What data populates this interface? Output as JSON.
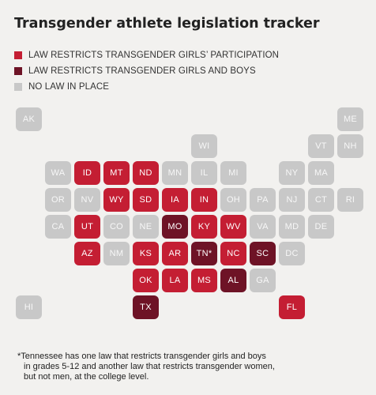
{
  "title": "Transgender athlete legislation tracker",
  "legend": [
    {
      "key": "girls",
      "label": "LAW RESTRICTS TRANSGENDER GIRLS’ PARTICIPATION",
      "color": "#c41e33"
    },
    {
      "key": "both",
      "label": "LAW RESTRICTS TRANSGENDER GIRLS AND BOYS",
      "color": "#6e1326"
    },
    {
      "key": "none",
      "label": "NO LAW IN PLACE",
      "color": "#c8c8c8"
    }
  ],
  "states": [
    {
      "label": "AK",
      "status": "none",
      "col": 0,
      "row": 0
    },
    {
      "label": "ME",
      "status": "none",
      "col": 11,
      "row": 0
    },
    {
      "label": "WI",
      "status": "none",
      "col": 6,
      "row": 1
    },
    {
      "label": "VT",
      "status": "none",
      "col": 10,
      "row": 1
    },
    {
      "label": "NH",
      "status": "none",
      "col": 11,
      "row": 1
    },
    {
      "label": "WA",
      "status": "none",
      "col": 1,
      "row": 2
    },
    {
      "label": "ID",
      "status": "girls",
      "col": 2,
      "row": 2
    },
    {
      "label": "MT",
      "status": "girls",
      "col": 3,
      "row": 2
    },
    {
      "label": "ND",
      "status": "girls",
      "col": 4,
      "row": 2
    },
    {
      "label": "MN",
      "status": "none",
      "col": 5,
      "row": 2
    },
    {
      "label": "IL",
      "status": "none",
      "col": 6,
      "row": 2
    },
    {
      "label": "MI",
      "status": "none",
      "col": 7,
      "row": 2
    },
    {
      "label": "NY",
      "status": "none",
      "col": 9,
      "row": 2
    },
    {
      "label": "MA",
      "status": "none",
      "col": 10,
      "row": 2
    },
    {
      "label": "OR",
      "status": "none",
      "col": 1,
      "row": 3
    },
    {
      "label": "NV",
      "status": "none",
      "col": 2,
      "row": 3
    },
    {
      "label": "WY",
      "status": "girls",
      "col": 3,
      "row": 3
    },
    {
      "label": "SD",
      "status": "girls",
      "col": 4,
      "row": 3
    },
    {
      "label": "IA",
      "status": "girls",
      "col": 5,
      "row": 3
    },
    {
      "label": "IN",
      "status": "girls",
      "col": 6,
      "row": 3
    },
    {
      "label": "OH",
      "status": "none",
      "col": 7,
      "row": 3
    },
    {
      "label": "PA",
      "status": "none",
      "col": 8,
      "row": 3
    },
    {
      "label": "NJ",
      "status": "none",
      "col": 9,
      "row": 3
    },
    {
      "label": "CT",
      "status": "none",
      "col": 10,
      "row": 3
    },
    {
      "label": "RI",
      "status": "none",
      "col": 11,
      "row": 3
    },
    {
      "label": "CA",
      "status": "none",
      "col": 1,
      "row": 4
    },
    {
      "label": "UT",
      "status": "girls",
      "col": 2,
      "row": 4
    },
    {
      "label": "CO",
      "status": "none",
      "col": 3,
      "row": 4
    },
    {
      "label": "NE",
      "status": "none",
      "col": 4,
      "row": 4
    },
    {
      "label": "MO",
      "status": "both",
      "col": 5,
      "row": 4
    },
    {
      "label": "KY",
      "status": "girls",
      "col": 6,
      "row": 4
    },
    {
      "label": "WV",
      "status": "girls",
      "col": 7,
      "row": 4
    },
    {
      "label": "VA",
      "status": "none",
      "col": 8,
      "row": 4
    },
    {
      "label": "MD",
      "status": "none",
      "col": 9,
      "row": 4
    },
    {
      "label": "DE",
      "status": "none",
      "col": 10,
      "row": 4
    },
    {
      "label": "AZ",
      "status": "girls",
      "col": 2,
      "row": 5
    },
    {
      "label": "NM",
      "status": "none",
      "col": 3,
      "row": 5
    },
    {
      "label": "KS",
      "status": "girls",
      "col": 4,
      "row": 5
    },
    {
      "label": "AR",
      "status": "girls",
      "col": 5,
      "row": 5
    },
    {
      "label": "TN*",
      "status": "both",
      "col": 6,
      "row": 5
    },
    {
      "label": "NC",
      "status": "girls",
      "col": 7,
      "row": 5
    },
    {
      "label": "SC",
      "status": "both",
      "col": 8,
      "row": 5
    },
    {
      "label": "DC",
      "status": "none",
      "col": 9,
      "row": 5
    },
    {
      "label": "OK",
      "status": "girls",
      "col": 4,
      "row": 6
    },
    {
      "label": "LA",
      "status": "girls",
      "col": 5,
      "row": 6
    },
    {
      "label": "MS",
      "status": "girls",
      "col": 6,
      "row": 6
    },
    {
      "label": "AL",
      "status": "both",
      "col": 7,
      "row": 6
    },
    {
      "label": "GA",
      "status": "none",
      "col": 8,
      "row": 6
    },
    {
      "label": "HI",
      "status": "none",
      "col": 0,
      "row": 7
    },
    {
      "label": "TX",
      "status": "both",
      "col": 4,
      "row": 7
    },
    {
      "label": "FL",
      "status": "girls",
      "col": 9,
      "row": 7
    }
  ],
  "footnote": {
    "line1": "*Tennessee has one law that restricts transgender girls and boys",
    "line2": "in grades 5-12 and another law that restricts transgender women,",
    "line3": "but not men, at the college level."
  }
}
